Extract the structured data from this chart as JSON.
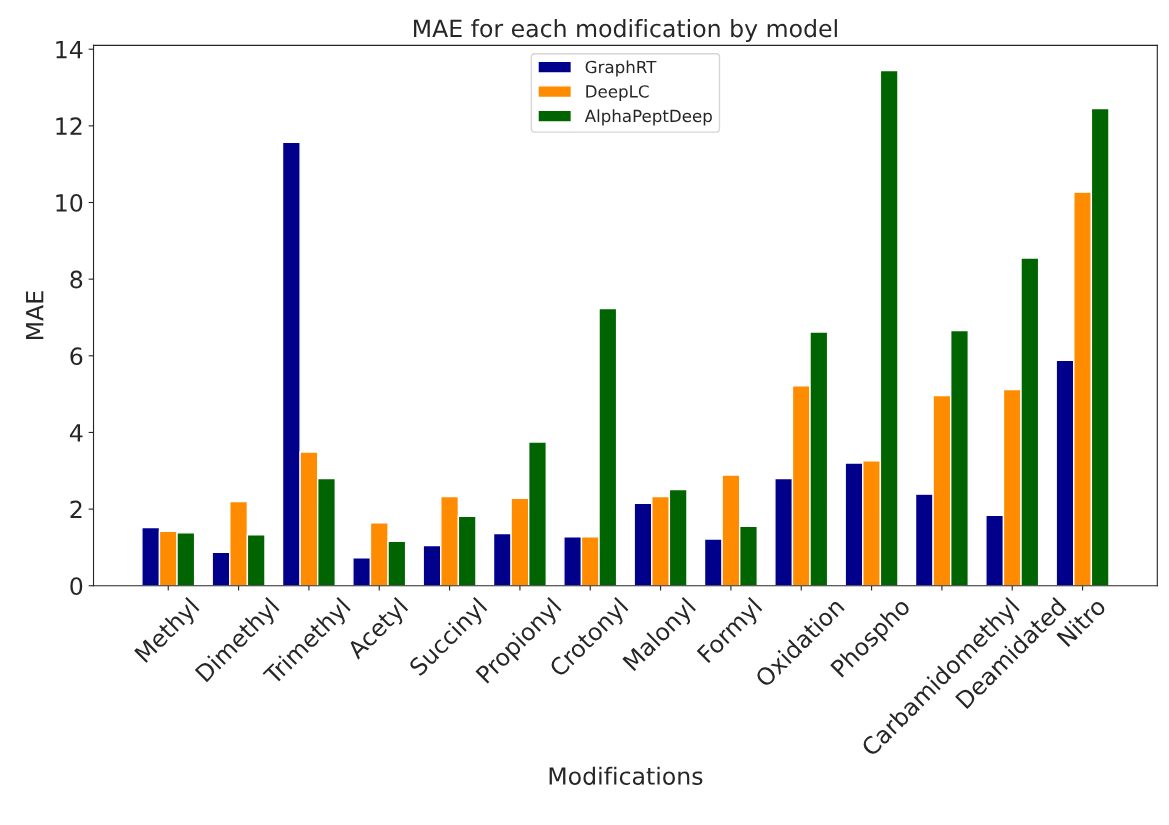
{
  "chart_data": {
    "type": "bar",
    "title": "MAE for each modification by model",
    "xlabel": "Modifications",
    "ylabel": "MAE",
    "categories": [
      "Methyl",
      "Dimethyl",
      "Trimethyl",
      "Acetyl",
      "Succinyl",
      "Propionyl",
      "Crotonyl",
      "Malonyl",
      "Formyl",
      "Oxidation",
      "Phospho",
      "Carbamidomethyl",
      "Deamidated",
      "Nitro"
    ],
    "series": [
      {
        "name": "GraphRT",
        "color": "#00008b",
        "values": [
          1.52,
          0.87,
          11.57,
          0.73,
          1.05,
          1.36,
          1.28,
          2.15,
          1.22,
          2.8,
          3.2,
          2.39,
          1.84,
          5.88
        ]
      },
      {
        "name": "DeepLC",
        "color": "#ff8c00",
        "values": [
          1.42,
          2.2,
          3.49,
          1.64,
          2.33,
          2.28,
          1.28,
          2.33,
          2.89,
          5.22,
          3.26,
          4.96,
          5.12,
          10.27
        ]
      },
      {
        "name": "AlphaPeptDeep",
        "color": "#006400",
        "values": [
          1.38,
          1.33,
          2.8,
          1.16,
          1.81,
          3.75,
          7.23,
          2.51,
          1.55,
          6.62,
          13.44,
          6.66,
          8.55,
          12.45
        ]
      }
    ],
    "ylim": [
      0,
      14.1
    ],
    "yticks": [
      0,
      2,
      4,
      6,
      8,
      10,
      12,
      14
    ],
    "grid": false,
    "legend": "top"
  }
}
